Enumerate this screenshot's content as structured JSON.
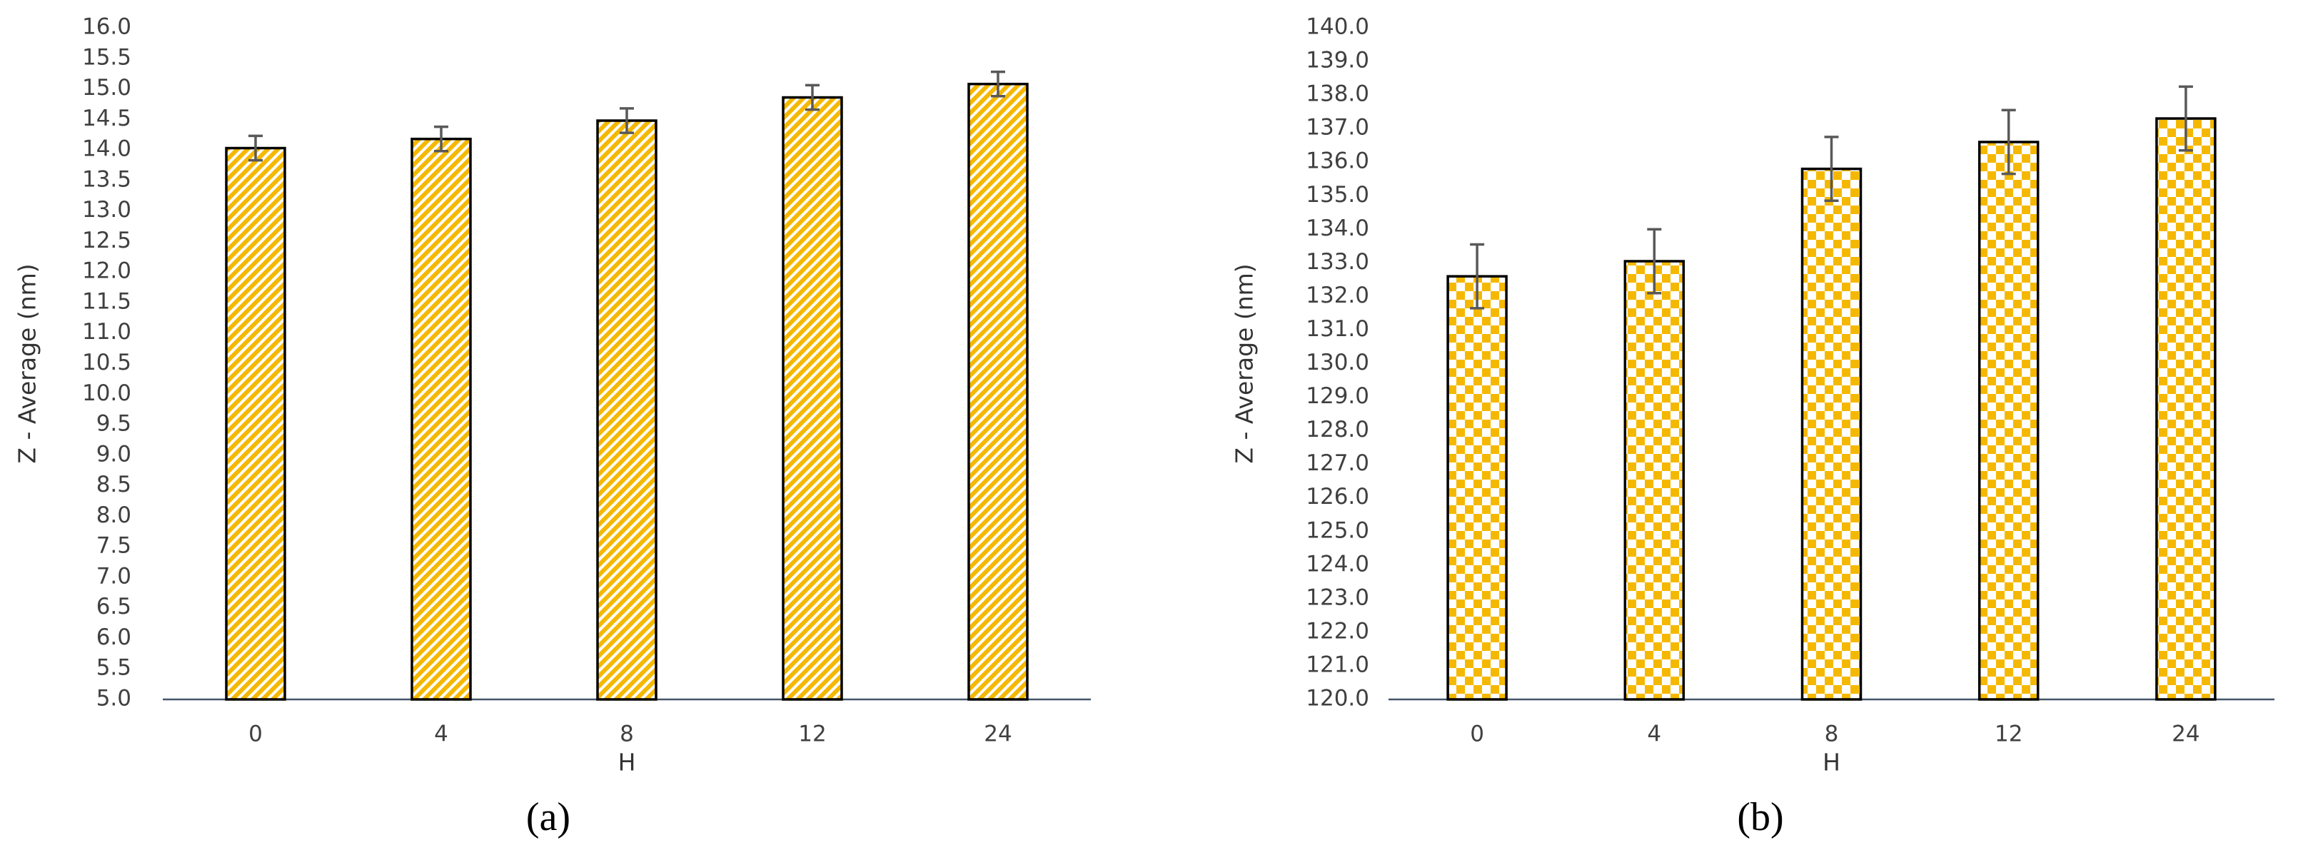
{
  "chart_data": [
    {
      "type": "bar",
      "panel_label": "(a)",
      "xlabel": "H",
      "ylabel": "Z - Average (nm)",
      "categories": [
        "0",
        "4",
        "8",
        "12",
        "24"
      ],
      "values": [
        14.03,
        14.18,
        14.48,
        14.86,
        15.08
      ],
      "errors": [
        0.2,
        0.2,
        0.2,
        0.2,
        0.2
      ],
      "color": "#f5b800",
      "pattern": "diagonal",
      "ylim": [
        5,
        16
      ],
      "yticks": [
        {
          "value": 5,
          "label": "5.0"
        },
        5.5,
        {
          "value": 6,
          "label": "6.0"
        },
        6.5,
        {
          "value": 7,
          "label": "7.0"
        },
        7.5,
        {
          "value": 8,
          "label": "8.0"
        },
        8.5,
        {
          "value": 9,
          "label": "9.0"
        },
        9.5,
        {
          "value": 10,
          "label": "10.0"
        },
        10.5,
        {
          "value": 11,
          "label": "11.0"
        },
        11.5,
        {
          "value": 12,
          "label": "12.0"
        },
        12.5,
        {
          "value": 13,
          "label": "13.0"
        },
        13.5,
        {
          "value": 14,
          "label": "14.0"
        },
        14.5,
        {
          "value": 15,
          "label": "15.0"
        },
        15.5,
        {
          "value": 16,
          "label": "16.0"
        }
      ]
    },
    {
      "type": "bar",
      "panel_label": "(b)",
      "xlabel": "H",
      "ylabel": "Z - Average (nm)",
      "categories": [
        "0",
        "4",
        "8",
        "12",
        "24"
      ],
      "values": [
        132.6,
        133.05,
        135.8,
        136.6,
        137.3
      ],
      "errors": [
        0.95,
        0.95,
        0.95,
        0.95,
        0.95
      ],
      "color": "#f5b800",
      "pattern": "checker",
      "ylim": [
        120,
        140
      ],
      "yticks": [
        {
          "value": 120,
          "label": "120.0"
        },
        {
          "value": 121,
          "label": "121.0"
        },
        {
          "value": 122,
          "label": "122.0"
        },
        {
          "value": 123,
          "label": "123.0"
        },
        {
          "value": 124,
          "label": "124.0"
        },
        {
          "value": 125,
          "label": "125.0"
        },
        {
          "value": 126,
          "label": "126.0"
        },
        {
          "value": 127,
          "label": "127.0"
        },
        {
          "value": 128,
          "label": "128.0"
        },
        {
          "value": 129,
          "label": "129.0"
        },
        {
          "value": 130,
          "label": "130.0"
        },
        {
          "value": 131,
          "label": "131.0"
        },
        {
          "value": 132,
          "label": "132.0"
        },
        {
          "value": 133,
          "label": "133.0"
        },
        {
          "value": 134,
          "label": "134.0"
        },
        {
          "value": 135,
          "label": "135.0"
        },
        {
          "value": 136,
          "label": "136.0"
        },
        {
          "value": 137,
          "label": "137.0"
        },
        {
          "value": 138,
          "label": "138.0"
        },
        {
          "value": 139,
          "label": "139.0"
        },
        {
          "value": 140,
          "label": "140.0"
        }
      ]
    }
  ]
}
